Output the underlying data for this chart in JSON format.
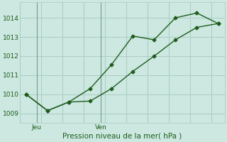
{
  "title": "",
  "xlabel": "Pression niveau de la mer( hPa )",
  "background_color": "#cce8e0",
  "grid_color": "#aaccc4",
  "line_color": "#1e5c1e",
  "ylim": [
    1008.5,
    1014.8
  ],
  "series1_x": [
    0,
    1,
    2,
    3,
    4,
    5,
    6,
    7,
    8,
    9
  ],
  "series1_y": [
    1010.0,
    1009.15,
    1009.6,
    1010.3,
    1011.55,
    1013.05,
    1012.85,
    1014.0,
    1014.25,
    1013.7
  ],
  "series2_x": [
    0,
    1,
    2,
    3,
    4,
    5,
    6,
    7,
    8,
    9
  ],
  "series2_y": [
    1010.0,
    1009.15,
    1009.6,
    1009.65,
    1010.3,
    1011.2,
    1012.0,
    1012.85,
    1013.5,
    1013.7
  ],
  "yticks": [
    1009,
    1010,
    1011,
    1012,
    1013,
    1014
  ],
  "xtick_positions": [
    0.5,
    3.5
  ],
  "xtick_labels": [
    "Jeu",
    "Ven"
  ],
  "vline_x": [
    0.5,
    3.5
  ]
}
